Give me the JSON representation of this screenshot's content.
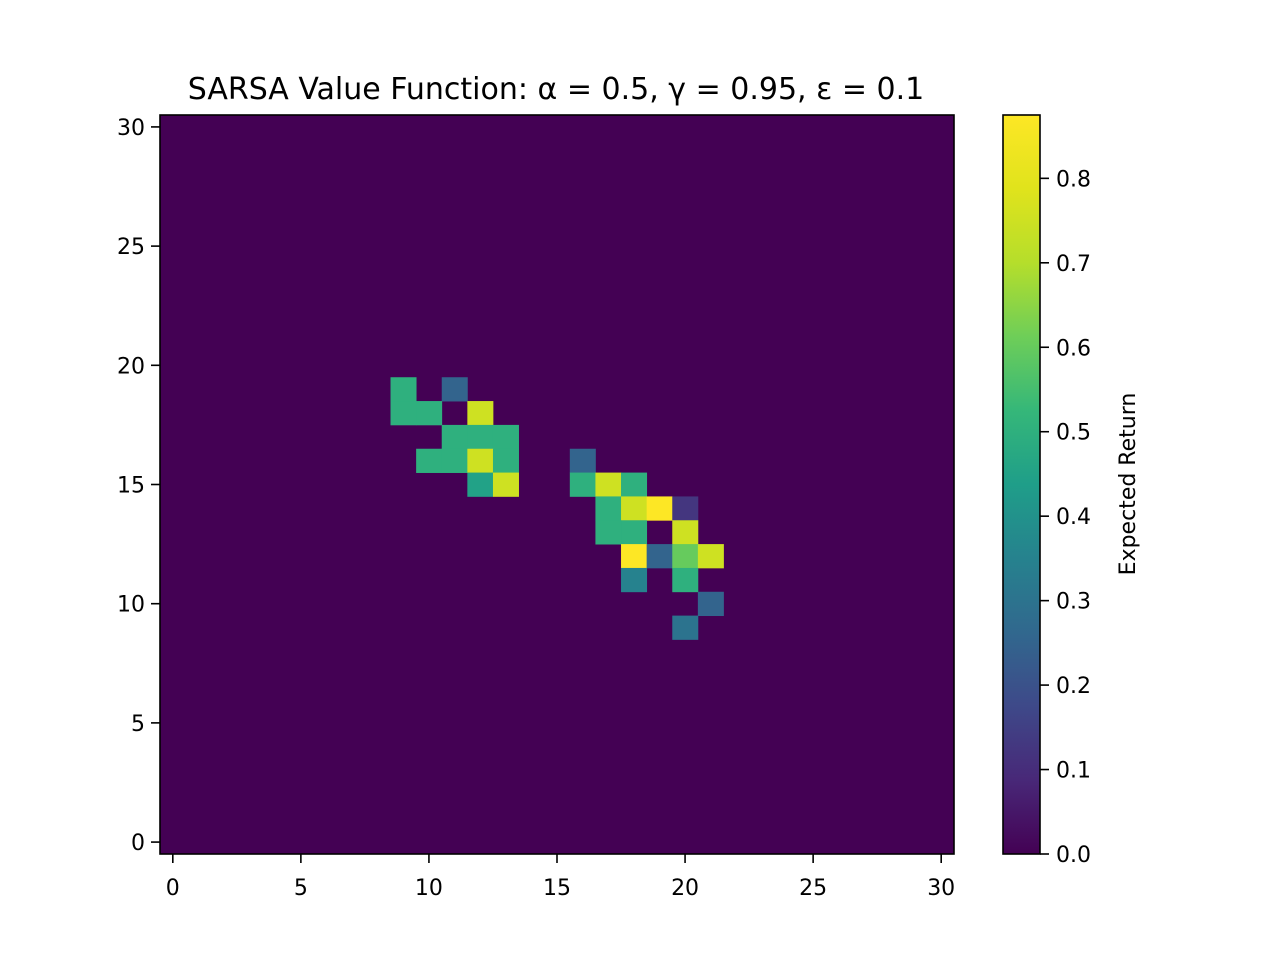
{
  "chart_data": {
    "type": "heatmap",
    "title": "SARSA Value Function: α = 0.5, γ = 0.95, ε = 0.1",
    "xlabel": "",
    "ylabel": "",
    "colormap": "viridis",
    "colorbar_label": "Expected Return",
    "xlim": [
      -0.5,
      30.5
    ],
    "ylim": [
      -0.5,
      30.5
    ],
    "x_ticks": [
      0,
      5,
      10,
      15,
      20,
      25,
      30
    ],
    "y_ticks": [
      0,
      5,
      10,
      15,
      20,
      25,
      30
    ],
    "x_tick_labels": [
      "0",
      "5",
      "10",
      "15",
      "20",
      "25",
      "30"
    ],
    "y_tick_labels": [
      "0",
      "5",
      "10",
      "15",
      "20",
      "25",
      "30"
    ],
    "colorbar_range": [
      0.0,
      0.875
    ],
    "colorbar_ticks": [
      0.0,
      0.1,
      0.2,
      0.3,
      0.4,
      0.5,
      0.6,
      0.7,
      0.8
    ],
    "colorbar_tick_labels": [
      "0.0",
      "0.1",
      "0.2",
      "0.3",
      "0.4",
      "0.5",
      "0.6",
      "0.7",
      "0.8"
    ],
    "grid": false,
    "background_value": 0.0,
    "cells": [
      {
        "x": 9,
        "y": 19,
        "value": 0.5
      },
      {
        "x": 11,
        "y": 19,
        "value": 0.25
      },
      {
        "x": 9,
        "y": 18,
        "value": 0.5
      },
      {
        "x": 10,
        "y": 18,
        "value": 0.5
      },
      {
        "x": 12,
        "y": 18,
        "value": 0.75
      },
      {
        "x": 11,
        "y": 17,
        "value": 0.5
      },
      {
        "x": 12,
        "y": 17,
        "value": 0.5
      },
      {
        "x": 13,
        "y": 17,
        "value": 0.5
      },
      {
        "x": 10,
        "y": 16,
        "value": 0.5
      },
      {
        "x": 11,
        "y": 16,
        "value": 0.5
      },
      {
        "x": 12,
        "y": 16,
        "value": 0.75
      },
      {
        "x": 13,
        "y": 16,
        "value": 0.5
      },
      {
        "x": 12,
        "y": 15,
        "value": 0.45
      },
      {
        "x": 13,
        "y": 15,
        "value": 0.75
      },
      {
        "x": 16,
        "y": 16,
        "value": 0.25
      },
      {
        "x": 16,
        "y": 15,
        "value": 0.5
      },
      {
        "x": 17,
        "y": 15,
        "value": 0.75
      },
      {
        "x": 18,
        "y": 15,
        "value": 0.5
      },
      {
        "x": 17,
        "y": 14,
        "value": 0.5
      },
      {
        "x": 18,
        "y": 14,
        "value": 0.75
      },
      {
        "x": 19,
        "y": 14,
        "value": 0.875
      },
      {
        "x": 20,
        "y": 14,
        "value": 0.125
      },
      {
        "x": 17,
        "y": 13,
        "value": 0.5
      },
      {
        "x": 18,
        "y": 13,
        "value": 0.5
      },
      {
        "x": 20,
        "y": 13,
        "value": 0.75
      },
      {
        "x": 18,
        "y": 12,
        "value": 0.875
      },
      {
        "x": 19,
        "y": 12,
        "value": 0.25
      },
      {
        "x": 20,
        "y": 12,
        "value": 0.6
      },
      {
        "x": 21,
        "y": 12,
        "value": 0.75
      },
      {
        "x": 18,
        "y": 11,
        "value": 0.35
      },
      {
        "x": 20,
        "y": 11,
        "value": 0.5
      },
      {
        "x": 21,
        "y": 10,
        "value": 0.25
      },
      {
        "x": 20,
        "y": 9,
        "value": 0.3
      }
    ]
  }
}
